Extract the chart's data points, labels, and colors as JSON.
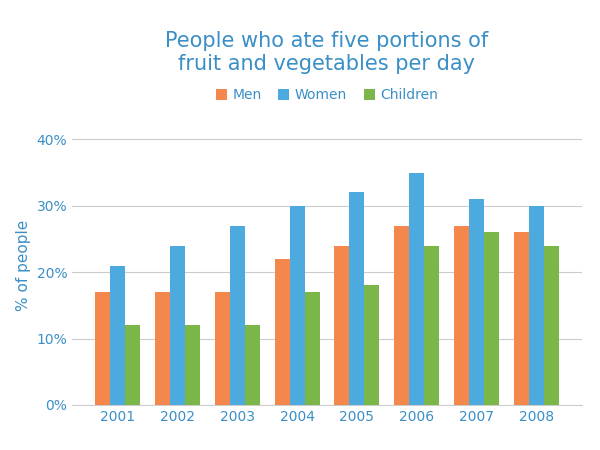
{
  "title": "People who ate five portions of\nfruit and vegetables per day",
  "ylabel": "% of people",
  "years": [
    2001,
    2002,
    2003,
    2004,
    2005,
    2006,
    2007,
    2008
  ],
  "men": [
    17,
    17,
    17,
    22,
    24,
    27,
    27,
    26
  ],
  "women": [
    21,
    24,
    27,
    30,
    32,
    35,
    31,
    30
  ],
  "children": [
    12,
    12,
    12,
    17,
    18,
    24,
    26,
    24
  ],
  "men_color": "#F4874B",
  "women_color": "#4DAADF",
  "children_color": "#7AB648",
  "title_color": "#3A8FC7",
  "ylabel_color": "#3A8FC7",
  "tick_color": "#3A8FC7",
  "grid_color": "#CCCCCC",
  "background_color": "#FFFFFF",
  "ylim": [
    0,
    42
  ],
  "yticks": [
    0,
    10,
    20,
    30,
    40
  ],
  "ytick_labels": [
    "0%",
    "10%",
    "20%",
    "30%",
    "40%"
  ],
  "bar_width": 0.25,
  "legend_labels": [
    "Men",
    "Women",
    "Children"
  ],
  "title_fontsize": 15,
  "axis_fontsize": 11,
  "tick_fontsize": 10,
  "legend_fontsize": 10
}
